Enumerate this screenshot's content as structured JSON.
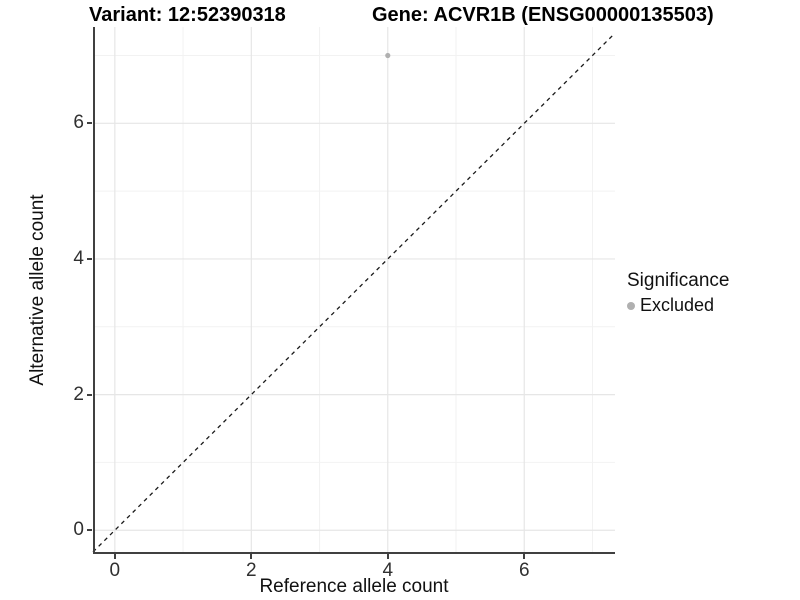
{
  "header": {
    "variant_title": "Variant: 12:52390318",
    "gene_title": "Gene: ACVR1B (ENSG00000135503)"
  },
  "axes": {
    "x": {
      "label": "Reference allele count",
      "tick_labels": [
        "0",
        "2",
        "4",
        "6"
      ]
    },
    "y": {
      "label": "Alternative allele count",
      "tick_labels": [
        "0",
        "2",
        "4",
        "6"
      ]
    }
  },
  "legend": {
    "title": "Significance",
    "items": [
      {
        "label": "Excluded",
        "color": "#b0b0b0"
      }
    ]
  },
  "colors": {
    "background": "#ffffff",
    "grid_major": "#e6e6e6",
    "grid_minor": "#f2f2f2",
    "axis_line": "#404040",
    "point_gray": "#b0b0b0",
    "reference_line": "#1a1a1a"
  },
  "chart_data": {
    "type": "scatter",
    "title_left": "Variant: 12:52390318",
    "title_right": "Gene: ACVR1B (ENSG00000135503)",
    "xlabel": "Reference allele count",
    "ylabel": "Alternative allele count",
    "xlim": [
      -0.32,
      7.33
    ],
    "ylim": [
      -0.35,
      7.42
    ],
    "x_major_ticks": [
      0,
      2,
      4,
      6
    ],
    "y_major_ticks": [
      0,
      2,
      4,
      6
    ],
    "x_minor_gridlines": [
      1,
      3,
      5,
      7
    ],
    "y_minor_gridlines": [
      1,
      3,
      5,
      7
    ],
    "grid": true,
    "legend_position": "right",
    "series": [
      {
        "name": "Excluded",
        "color": "#b0b0b0",
        "points": [
          {
            "x": 4,
            "y": 7
          }
        ]
      }
    ],
    "reference_line": {
      "equation": "y = x",
      "style": "dashed",
      "color": "#1a1a1a"
    }
  }
}
